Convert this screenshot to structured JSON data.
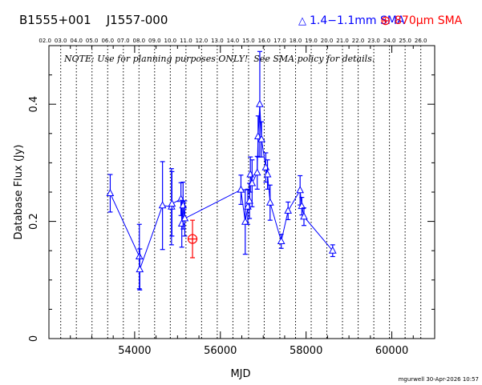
{
  "header": {
    "source_names": "B1555+001    J1557-000",
    "legend": [
      {
        "symbol": "△",
        "label": "1.4−1.1mm SMA",
        "color": "#0000ff"
      },
      {
        "symbol": "⊕",
        "label": "870μm SMA",
        "color": "#ff0000"
      }
    ]
  },
  "note": "NOTE: Use for planning purposes ONLY!  See SMA policy for details.",
  "footer_stamp": "mgurwell 30-Apr-2026 10:57",
  "chart_data": {
    "type": "scatter",
    "xlabel": "MJD",
    "ylabel": "Database Flux (Jy)",
    "xlim": [
      52000,
      61000
    ],
    "ylim": [
      0,
      0.5
    ],
    "x_ticks": [
      54000,
      56000,
      58000,
      60000
    ],
    "x_tick_labels": [
      "54000",
      "56000",
      "58000",
      "60000"
    ],
    "y_ticks": [
      0,
      0.2,
      0.4
    ],
    "y_tick_labels": [
      "0",
      "0.2",
      "0.4"
    ],
    "top_axis_labels": [
      "02.0",
      "03.0",
      "04.0",
      "05.0",
      "06.0",
      "07.0",
      "08.0",
      "09.0",
      "10.0",
      "11.0",
      "12.0",
      "13.0",
      "14.0",
      "15.0",
      "16.0",
      "17.0",
      "18.0",
      "19.0",
      "20.0",
      "21.0",
      "22.0",
      "23.0",
      "24.0",
      "25.0",
      "26.0"
    ],
    "year_lines_mjd": [
      52275,
      52640,
      53005,
      53371,
      53736,
      54101,
      54466,
      54832,
      55197,
      55562,
      55927,
      56293,
      56658,
      57023,
      57388,
      57754,
      58119,
      58484,
      58849,
      59215,
      59580,
      59945,
      60310,
      60676
    ],
    "grid": "vertical dotted lines at each year",
    "series": [
      {
        "name": "1.4−1.1mm SMA",
        "color": "#0000ff",
        "marker": "triangle",
        "connected": true,
        "points": [
          {
            "x": 53430,
            "y": 0.248,
            "err": 0.032
          },
          {
            "x": 54110,
            "y": 0.14,
            "err": 0.055
          },
          {
            "x": 54120,
            "y": 0.118,
            "err": 0.035
          },
          {
            "x": 54650,
            "y": 0.227,
            "err": 0.075
          },
          {
            "x": 54860,
            "y": 0.225,
            "err": 0.065
          },
          {
            "x": 54870,
            "y": 0.23,
            "err": 0.055
          },
          {
            "x": 55080,
            "y": 0.238,
            "err": 0.028
          },
          {
            "x": 55100,
            "y": 0.196,
            "err": 0.04
          },
          {
            "x": 55130,
            "y": 0.227,
            "err": 0.04
          },
          {
            "x": 55170,
            "y": 0.205,
            "err": 0.03
          },
          {
            "x": 56480,
            "y": 0.254,
            "err": 0.025
          },
          {
            "x": 56580,
            "y": 0.199,
            "err": 0.055
          },
          {
            "x": 56640,
            "y": 0.225,
            "err": 0.03
          },
          {
            "x": 56680,
            "y": 0.235,
            "err": 0.03
          },
          {
            "x": 56700,
            "y": 0.28,
            "err": 0.03
          },
          {
            "x": 56740,
            "y": 0.265,
            "err": 0.04
          },
          {
            "x": 56860,
            "y": 0.283,
            "err": 0.028
          },
          {
            "x": 56880,
            "y": 0.345,
            "err": 0.035
          },
          {
            "x": 56920,
            "y": 0.4,
            "err": 0.09
          },
          {
            "x": 56960,
            "y": 0.34,
            "err": 0.03
          },
          {
            "x": 57060,
            "y": 0.292,
            "err": 0.025
          },
          {
            "x": 57100,
            "y": 0.28,
            "err": 0.025
          },
          {
            "x": 57160,
            "y": 0.232,
            "err": 0.03
          },
          {
            "x": 57420,
            "y": 0.166,
            "err": 0.012
          },
          {
            "x": 57580,
            "y": 0.218,
            "err": 0.015
          },
          {
            "x": 57860,
            "y": 0.253,
            "err": 0.025
          },
          {
            "x": 57900,
            "y": 0.226,
            "err": 0.015
          },
          {
            "x": 57950,
            "y": 0.208,
            "err": 0.015
          },
          {
            "x": 58620,
            "y": 0.15,
            "err": 0.01
          }
        ]
      },
      {
        "name": "870μm SMA",
        "color": "#ff0000",
        "marker": "circle-plus",
        "connected": false,
        "points": [
          {
            "x": 55350,
            "y": 0.17,
            "err": 0.032
          }
        ]
      }
    ]
  }
}
